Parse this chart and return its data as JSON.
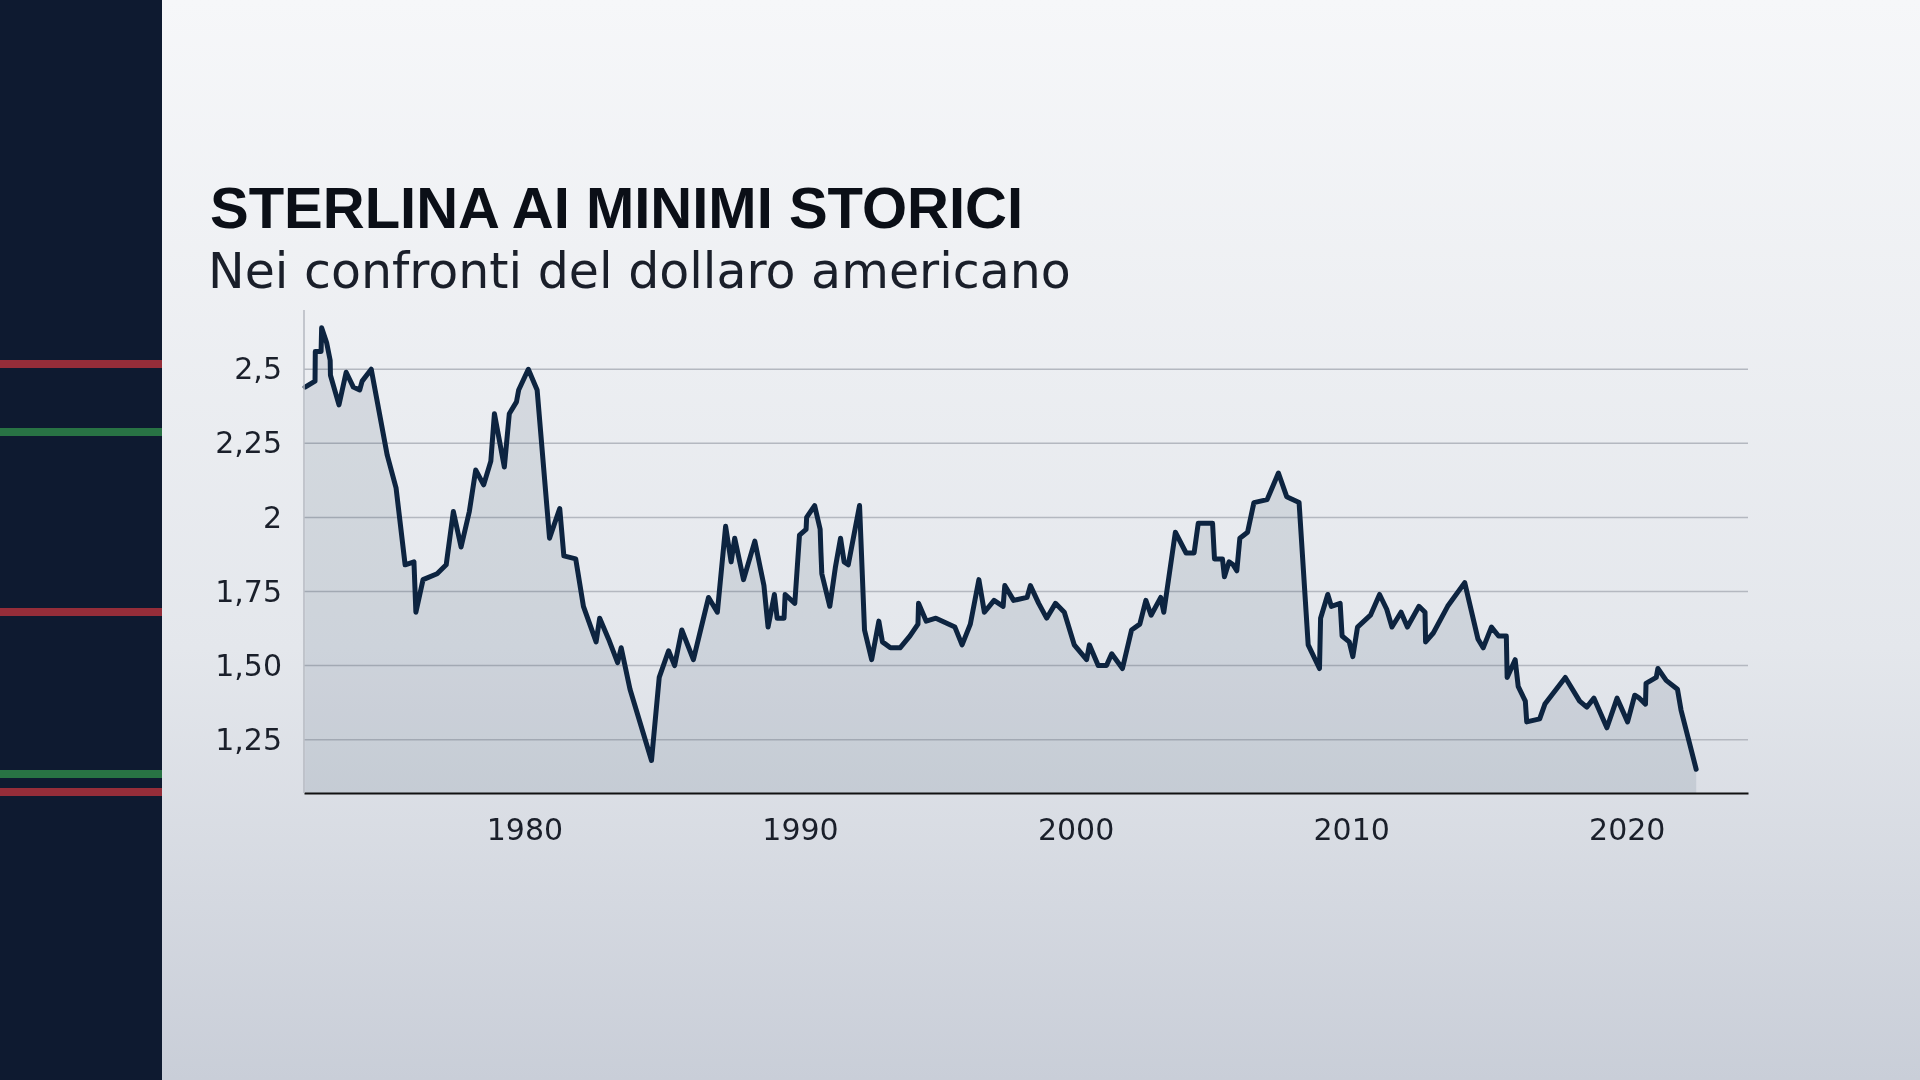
{
  "chart_data": {
    "type": "area",
    "title": "STERLINA AI MINIMI STORICI",
    "subtitle": "Nei confronti del dollaro americano",
    "series": [
      {
        "color": "#0d2440",
        "x": [
          1972.04,
          1972.4,
          1972.41,
          1972.62,
          1972.64,
          1972.82,
          1972.95,
          1972.96,
          1973.27,
          1973.53,
          1973.79,
          1974.02,
          1974.11,
          1974.44,
          1975.02,
          1975.34,
          1975.67,
          1975.99,
          1976.06,
          1976.32,
          1976.83,
          1977.16,
          1977.42,
          1977.7,
          1978,
          1978.23,
          1978.52,
          1978.78,
          1978.91,
          1979.27,
          1979.45,
          1979.71,
          1979.79,
          1980.14,
          1980.46,
          1980.91,
          1981.28,
          1981.43,
          1981.86,
          1982.14,
          1982.6,
          1982.73,
          1983.05,
          1983.38,
          1983.51,
          1983.83,
          1984.61,
          1984.89,
          1985.23,
          1985.45,
          1985.71,
          1986.13,
          1986.68,
          1987,
          1987.3,
          1987.5,
          1987.63,
          1987.95,
          1988.36,
          1988.69,
          1988.84,
          1989.07,
          1989.17,
          1989.42,
          1989.46,
          1989.81,
          1989.98,
          1990.22,
          1990.24,
          1990.53,
          1990.73,
          1990.76,
          1990.79,
          1991.08,
          1991.28,
          1991.47,
          1991.6,
          1991.75,
          1992.16,
          1992.34,
          1992.6,
          1992.86,
          1992.99,
          1993.28,
          1993.63,
          1993.99,
          1994.28,
          1994.3,
          1994.58,
          1994.93,
          1995.62,
          1995.88,
          1996.18,
          1996.49,
          1996.69,
          1997.04,
          1997.37,
          1997.43,
          1997.75,
          1998.24,
          1998.36,
          1998.66,
          1998.95,
          1999.27,
          1999.59,
          1999.95,
          2000.4,
          2000.5,
          2000.82,
          2001.12,
          2001.31,
          2001.7,
          2002.03,
          2002.33,
          2002.55,
          2002.74,
          2003.09,
          2003.2,
          2003.62,
          2004.01,
          2004.3,
          2004.45,
          2004.97,
          2005.04,
          2005.33,
          2005.4,
          2005.57,
          2005.72,
          2005.85,
          2005.96,
          2006.24,
          2006.47,
          2006.95,
          2007.36,
          2007.66,
          2008.11,
          2008.44,
          2008.85,
          2008.89,
          2009.15,
          2009.28,
          2009.6,
          2009.67,
          2009.93,
          2010.06,
          2010.23,
          2010.7,
          2011.03,
          2011.29,
          2011.48,
          2011.81,
          2012.04,
          2012.46,
          2012.68,
          2012.7,
          2012.98,
          2013.5,
          2014.12,
          2014.6,
          2014.79,
          2015.09,
          2015.35,
          2015.63,
          2015.66,
          2015.95,
          2016.06,
          2016.32,
          2016.37,
          2016.84,
          2017.03,
          2017.77,
          2018.29,
          2018.55,
          2018.81,
          2019.28,
          2019.65,
          2020.03,
          2020.29,
          2020.46,
          2020.68,
          2020.7,
          2021.07,
          2021.13,
          2021.43,
          2021.84,
          2021.97,
          2022.52
        ],
        "values": [
          2.44,
          2.46,
          2.56,
          2.56,
          2.64,
          2.59,
          2.53,
          2.48,
          2.38,
          2.49,
          2.44,
          2.43,
          2.46,
          2.5,
          2.21,
          2.1,
          1.84,
          1.85,
          1.68,
          1.79,
          1.81,
          1.84,
          2.02,
          1.9,
          2.02,
          2.16,
          2.11,
          2.19,
          2.35,
          2.17,
          2.35,
          2.39,
          2.43,
          2.5,
          2.43,
          1.93,
          2.03,
          1.87,
          1.86,
          1.7,
          1.58,
          1.66,
          1.59,
          1.51,
          1.56,
          1.42,
          1.18,
          1.46,
          1.55,
          1.5,
          1.62,
          1.52,
          1.73,
          1.68,
          1.97,
          1.85,
          1.93,
          1.79,
          1.92,
          1.77,
          1.63,
          1.74,
          1.66,
          1.66,
          1.74,
          1.71,
          1.94,
          1.96,
          2,
          2.04,
          1.96,
          1.88,
          1.81,
          1.7,
          1.83,
          1.93,
          1.85,
          1.84,
          2.04,
          1.62,
          1.52,
          1.65,
          1.58,
          1.56,
          1.56,
          1.6,
          1.64,
          1.71,
          1.65,
          1.66,
          1.63,
          1.57,
          1.64,
          1.79,
          1.68,
          1.72,
          1.7,
          1.77,
          1.72,
          1.73,
          1.77,
          1.71,
          1.66,
          1.71,
          1.68,
          1.57,
          1.52,
          1.57,
          1.5,
          1.5,
          1.54,
          1.49,
          1.62,
          1.64,
          1.72,
          1.67,
          1.73,
          1.68,
          1.95,
          1.88,
          1.88,
          1.98,
          1.98,
          1.86,
          1.86,
          1.8,
          1.85,
          1.84,
          1.82,
          1.93,
          1.95,
          2.05,
          2.06,
          2.15,
          2.07,
          2.05,
          1.57,
          1.49,
          1.66,
          1.74,
          1.7,
          1.71,
          1.6,
          1.58,
          1.53,
          1.63,
          1.67,
          1.74,
          1.69,
          1.63,
          1.68,
          1.63,
          1.7,
          1.68,
          1.58,
          1.61,
          1.7,
          1.78,
          1.59,
          1.56,
          1.63,
          1.6,
          1.6,
          1.46,
          1.52,
          1.43,
          1.38,
          1.31,
          1.32,
          1.37,
          1.46,
          1.38,
          1.36,
          1.39,
          1.29,
          1.39,
          1.31,
          1.4,
          1.39,
          1.37,
          1.44,
          1.46,
          1.49,
          1.45,
          1.42,
          1.35,
          1.15
        ]
      }
    ],
    "xlim": [
      1972,
      2024.4
    ],
    "xticks": [
      1980,
      1990,
      2000,
      2010,
      2020
    ],
    "ylim": [
      1.07,
      2.7
    ],
    "yticks": [
      {
        "value": 1.25,
        "label": "1,25"
      },
      {
        "value": 1.5,
        "label": "1,50"
      },
      {
        "value": 1.75,
        "label": "1,75"
      },
      {
        "value": 2,
        "label": "2"
      },
      {
        "value": 2.25,
        "label": "2,25"
      },
      {
        "value": 2.5,
        "label": "2,5"
      }
    ],
    "grid": "y"
  }
}
